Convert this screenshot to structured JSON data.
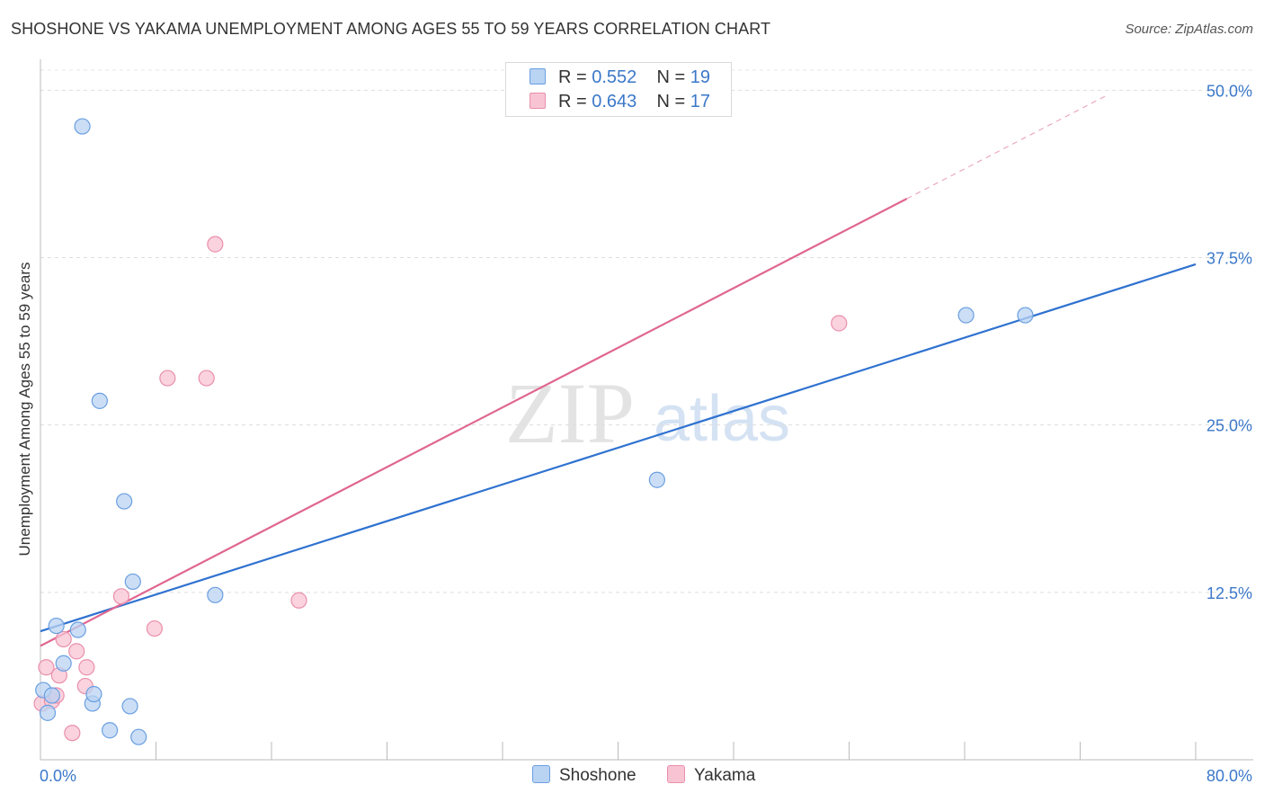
{
  "title": "SHOSHONE VS YAKAMA UNEMPLOYMENT AMONG AGES 55 TO 59 YEARS CORRELATION CHART",
  "source": "Source: ZipAtlas.com",
  "watermark": {
    "zip": "ZIP",
    "atlas": "atlas"
  },
  "legend": {
    "rows": [
      {
        "r_label": "R =",
        "r_value": "0.552",
        "n_label": "N =",
        "n_value": "19"
      },
      {
        "r_label": "R =",
        "r_value": "0.643",
        "n_label": "N =",
        "n_value": "17"
      }
    ]
  },
  "bottom_legend": {
    "shoshone": "Shoshone",
    "yakama": "Yakama"
  },
  "chart_data": {
    "type": "scatter",
    "title": "SHOSHONE VS YAKAMA UNEMPLOYMENT AMONG AGES 55 TO 59 YEARS CORRELATION CHART",
    "xlabel": "",
    "ylabel": "Unemployment Among Ages 55 to 59 years",
    "xlim": [
      0,
      80
    ],
    "ylim": [
      0,
      50
    ],
    "x_tick_labels": [
      "0.0%",
      "80.0%"
    ],
    "y_ticks": [
      {
        "value": 12.5,
        "label": "12.5%"
      },
      {
        "value": 25,
        "label": "25.0%"
      },
      {
        "value": 37.5,
        "label": "37.5%"
      },
      {
        "value": 50,
        "label": "50.0%"
      }
    ],
    "grid": true,
    "colors": {
      "shoshone_fill": "#b9d3f3",
      "shoshone_stroke": "#6a9fe0",
      "shoshone_line": "#2f72d0",
      "yakama_fill": "#f8c4d4",
      "yakama_stroke": "#ea8fab",
      "yakama_line": "#e06690",
      "axis_label": "#3b78c9"
    },
    "series": [
      {
        "name": "Shoshone",
        "r": 0.552,
        "n": 19,
        "points": [
          [
            0.2,
            5.2
          ],
          [
            0.5,
            3.5
          ],
          [
            0.8,
            4.8
          ],
          [
            1.1,
            10.0
          ],
          [
            1.6,
            7.2
          ],
          [
            2.6,
            9.7
          ],
          [
            2.9,
            47.3
          ],
          [
            3.6,
            4.2
          ],
          [
            3.7,
            4.9
          ],
          [
            4.1,
            26.8
          ],
          [
            4.8,
            2.2
          ],
          [
            5.8,
            19.3
          ],
          [
            6.2,
            4.0
          ],
          [
            6.4,
            13.3
          ],
          [
            6.8,
            1.7
          ],
          [
            12.1,
            12.3
          ],
          [
            42.7,
            20.9
          ],
          [
            64.1,
            33.2
          ],
          [
            68.2,
            33.2
          ]
        ],
        "trend": {
          "x0": 0,
          "y0": 9.6,
          "x1": 80,
          "y1": 37.0
        }
      },
      {
        "name": "Yakama",
        "r": 0.643,
        "n": 17,
        "points": [
          [
            0.1,
            4.2
          ],
          [
            0.4,
            6.9
          ],
          [
            0.8,
            4.4
          ],
          [
            1.1,
            4.8
          ],
          [
            1.3,
            6.3
          ],
          [
            1.6,
            9.0
          ],
          [
            2.2,
            2.0
          ],
          [
            2.5,
            8.1
          ],
          [
            3.1,
            5.5
          ],
          [
            3.2,
            6.9
          ],
          [
            5.6,
            12.2
          ],
          [
            7.9,
            9.8
          ],
          [
            8.8,
            28.5
          ],
          [
            11.5,
            28.5
          ],
          [
            12.1,
            38.5
          ],
          [
            17.9,
            11.9
          ],
          [
            55.3,
            32.6
          ]
        ],
        "trend": {
          "x0": 0,
          "y0": 8.5,
          "x1": 60,
          "y1": 41.9,
          "dash_to_x": 74,
          "dash_to_y": 49.7
        }
      }
    ]
  }
}
